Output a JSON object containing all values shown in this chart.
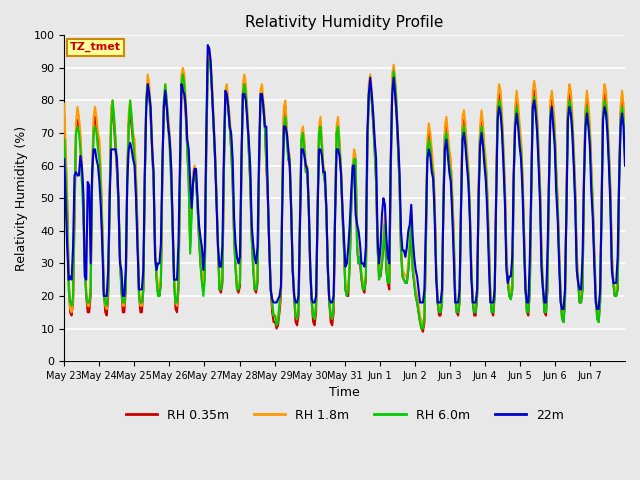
{
  "title": "Relativity Humidity Profile",
  "xlabel": "Time",
  "ylabel": "Relativity Humidity (%)",
  "ylim": [
    0,
    100
  ],
  "yticks": [
    0,
    10,
    20,
    30,
    40,
    50,
    60,
    70,
    80,
    90,
    100
  ],
  "bg_color": "#e8e8e8",
  "grid_color": "white",
  "annotation_text": "TZ_tmet",
  "annotation_bg": "#ffff99",
  "annotation_border": "#cc8800",
  "annotation_text_color": "#cc0000",
  "legend_labels": [
    "RH 0.35m",
    "RH 1.8m",
    "RH 6.0m",
    "22m"
  ],
  "line_colors": [
    "#cc0000",
    "#ff9900",
    "#00cc00",
    "#0000cc"
  ],
  "line_width": 1.5,
  "x_tick_labels": [
    "May 23",
    "May 24",
    "May 25",
    "May 26",
    "May 27",
    "May 28",
    "May 29",
    "May 30",
    "May 31",
    "Jun 1",
    "Jun 2",
    "Jun 3",
    "Jun 4",
    "Jun 5",
    "Jun 6",
    "Jun 7"
  ],
  "num_days": 16,
  "pts_per_day": 24,
  "rh035": [
    75,
    62,
    48,
    25,
    15,
    14,
    18,
    45,
    70,
    74,
    72,
    68,
    58,
    48,
    30,
    20,
    15,
    15,
    20,
    55,
    72,
    75,
    72,
    68,
    65,
    55,
    40,
    22,
    15,
    14,
    20,
    50,
    75,
    76,
    72,
    65,
    58,
    48,
    32,
    22,
    15,
    15,
    22,
    55,
    73,
    76,
    72,
    67,
    65,
    55,
    40,
    21,
    15,
    15,
    22,
    55,
    80,
    85,
    82,
    75,
    65,
    55,
    35,
    26,
    21,
    20,
    24,
    58,
    78,
    82,
    78,
    72,
    68,
    58,
    42,
    25,
    16,
    15,
    22,
    55,
    82,
    85,
    82,
    75,
    65,
    55,
    35,
    48,
    55,
    57,
    55,
    48,
    38,
    30,
    25,
    22,
    28,
    65,
    92,
    94,
    90,
    82,
    72,
    62,
    50,
    35,
    22,
    21,
    24,
    58,
    80,
    82,
    78,
    72,
    65,
    55,
    38,
    29,
    22,
    21,
    23,
    60,
    82,
    85,
    82,
    75,
    65,
    55,
    38,
    30,
    22,
    21,
    24,
    58,
    80,
    82,
    78,
    72,
    60,
    50,
    35,
    22,
    15,
    12,
    12,
    10,
    11,
    15,
    20,
    55,
    75,
    78,
    70,
    62,
    60,
    46,
    28,
    20,
    12,
    11,
    14,
    42,
    68,
    70,
    66,
    58,
    58,
    47,
    28,
    18,
    12,
    11,
    15,
    45,
    70,
    72,
    66,
    58,
    55,
    46,
    28,
    18,
    12,
    11,
    15,
    45,
    70,
    72,
    66,
    58,
    45,
    35,
    22,
    20,
    20,
    30,
    47,
    58,
    62,
    60,
    35,
    30,
    30,
    25,
    22,
    21,
    25,
    65,
    82,
    85,
    80,
    73,
    65,
    55,
    35,
    26,
    26,
    30,
    35,
    42,
    28,
    24,
    22,
    58,
    83,
    86,
    82,
    75,
    65,
    54,
    34,
    26,
    25,
    24,
    24,
    28,
    34,
    42,
    28,
    24,
    20,
    18,
    15,
    12,
    10,
    9,
    12,
    35,
    65,
    70,
    68,
    62,
    58,
    48,
    28,
    18,
    14,
    14,
    18,
    50,
    70,
    72,
    68,
    62,
    60,
    50,
    38,
    20,
    15,
    14,
    18,
    48,
    72,
    74,
    70,
    63,
    57,
    46,
    28,
    18,
    14,
    14,
    20,
    52,
    70,
    74,
    70,
    63,
    60,
    50,
    36,
    20,
    15,
    14,
    20,
    52,
    78,
    82,
    80,
    73,
    63,
    52,
    32,
    24,
    20,
    19,
    22,
    56,
    76,
    80,
    76,
    70,
    66,
    56,
    40,
    23,
    15,
    14,
    22,
    53,
    80,
    83,
    80,
    73,
    63,
    52,
    32,
    22,
    15,
    14,
    22,
    53,
    78,
    80,
    76,
    70,
    58,
    48,
    33,
    20,
    13,
    12,
    18,
    48,
    78,
    82,
    80,
    73,
    63,
    52,
    32,
    24,
    18,
    18,
    22,
    56,
    76,
    80,
    76,
    70,
    58,
    48,
    33,
    20,
    13,
    12,
    18,
    48,
    78,
    82,
    80,
    73,
    63,
    52,
    32,
    24,
    20,
    20,
    22,
    56,
    76,
    80,
    76,
    65
  ],
  "rh18": [
    79,
    65,
    50,
    27,
    16,
    15,
    19,
    48,
    73,
    78,
    75,
    70,
    60,
    50,
    32,
    22,
    17,
    17,
    22,
    58,
    75,
    78,
    75,
    70,
    68,
    58,
    42,
    24,
    17,
    16,
    22,
    52,
    78,
    80,
    75,
    68,
    60,
    50,
    34,
    24,
    17,
    17,
    24,
    58,
    76,
    80,
    75,
    70,
    68,
    58,
    42,
    23,
    17,
    17,
    24,
    58,
    81,
    88,
    85,
    78,
    68,
    58,
    37,
    28,
    23,
    22,
    26,
    60,
    80,
    85,
    80,
    75,
    70,
    60,
    44,
    27,
    18,
    17,
    24,
    58,
    88,
    90,
    88,
    80,
    68,
    58,
    37,
    50,
    58,
    60,
    58,
    50,
    40,
    32,
    27,
    24,
    30,
    68,
    93,
    96,
    92,
    85,
    75,
    65,
    52,
    37,
    24,
    23,
    26,
    60,
    83,
    85,
    80,
    75,
    68,
    58,
    40,
    31,
    24,
    23,
    25,
    62,
    85,
    88,
    85,
    78,
    68,
    58,
    40,
    32,
    24,
    23,
    26,
    60,
    83,
    85,
    80,
    75,
    63,
    52,
    37,
    24,
    17,
    14,
    14,
    12,
    13,
    17,
    22,
    58,
    78,
    80,
    72,
    65,
    63,
    48,
    30,
    22,
    14,
    13,
    16,
    45,
    70,
    72,
    68,
    60,
    60,
    50,
    30,
    20,
    14,
    13,
    17,
    48,
    72,
    75,
    68,
    60,
    58,
    48,
    30,
    20,
    14,
    13,
    17,
    48,
    72,
    75,
    68,
    60,
    48,
    38,
    24,
    22,
    22,
    32,
    50,
    60,
    65,
    63,
    38,
    32,
    32,
    27,
    24,
    23,
    27,
    68,
    85,
    88,
    83,
    76,
    68,
    58,
    37,
    28,
    28,
    32,
    38,
    45,
    30,
    26,
    24,
    62,
    88,
    91,
    87,
    80,
    68,
    56,
    36,
    28,
    27,
    26,
    26,
    30,
    37,
    45,
    30,
    26,
    22,
    20,
    17,
    14,
    12,
    11,
    14,
    38,
    68,
    73,
    70,
    65,
    60,
    50,
    30,
    20,
    16,
    16,
    20,
    52,
    72,
    75,
    70,
    65,
    62,
    52,
    40,
    22,
    17,
    16,
    20,
    50,
    75,
    77,
    73,
    66,
    60,
    48,
    30,
    20,
    16,
    16,
    22,
    54,
    72,
    77,
    73,
    66,
    62,
    52,
    38,
    22,
    17,
    16,
    22,
    54,
    80,
    85,
    83,
    76,
    66,
    54,
    34,
    26,
    22,
    21,
    24,
    58,
    78,
    83,
    79,
    73,
    68,
    58,
    42,
    25,
    17,
    16,
    24,
    55,
    83,
    86,
    83,
    76,
    66,
    54,
    34,
    24,
    17,
    16,
    24,
    55,
    80,
    83,
    79,
    73,
    60,
    50,
    35,
    22,
    15,
    14,
    20,
    50,
    80,
    85,
    83,
    76,
    66,
    54,
    34,
    26,
    20,
    20,
    24,
    58,
    78,
    83,
    79,
    73,
    60,
    50,
    35,
    22,
    15,
    14,
    20,
    50,
    80,
    85,
    83,
    76,
    66,
    54,
    34,
    26,
    22,
    22,
    24,
    58,
    78,
    83,
    79,
    68
  ],
  "rh60": [
    68,
    58,
    45,
    22,
    18,
    17,
    20,
    50,
    70,
    72,
    70,
    65,
    55,
    45,
    28,
    20,
    18,
    18,
    22,
    55,
    70,
    72,
    70,
    65,
    62,
    52,
    38,
    20,
    18,
    17,
    22,
    50,
    72,
    80,
    75,
    68,
    60,
    50,
    32,
    22,
    18,
    18,
    22,
    55,
    72,
    80,
    75,
    68,
    62,
    52,
    38,
    20,
    18,
    18,
    22,
    55,
    80,
    85,
    82,
    75,
    65,
    55,
    33,
    25,
    20,
    20,
    24,
    58,
    80,
    85,
    80,
    72,
    65,
    55,
    40,
    24,
    18,
    18,
    24,
    55,
    85,
    88,
    85,
    78,
    65,
    55,
    33,
    45,
    55,
    58,
    56,
    48,
    38,
    30,
    24,
    20,
    25,
    65,
    90,
    92,
    90,
    82,
    72,
    62,
    50,
    35,
    22,
    22,
    25,
    58,
    80,
    82,
    78,
    72,
    65,
    55,
    38,
    28,
    22,
    22,
    24,
    58,
    82,
    85,
    82,
    75,
    65,
    55,
    38,
    28,
    22,
    22,
    25,
    58,
    80,
    82,
    78,
    72,
    62,
    52,
    35,
    22,
    18,
    14,
    14,
    11,
    12,
    18,
    22,
    55,
    72,
    75,
    68,
    62,
    62,
    47,
    28,
    20,
    14,
    13,
    16,
    45,
    68,
    70,
    65,
    58,
    58,
    47,
    28,
    18,
    14,
    13,
    18,
    47,
    70,
    72,
    65,
    58,
    55,
    47,
    28,
    18,
    14,
    13,
    18,
    47,
    70,
    72,
    65,
    58,
    46,
    35,
    22,
    20,
    22,
    30,
    48,
    58,
    62,
    62,
    35,
    30,
    32,
    26,
    22,
    22,
    26,
    65,
    82,
    85,
    80,
    74,
    65,
    55,
    35,
    25,
    27,
    30,
    36,
    42,
    28,
    24,
    24,
    60,
    83,
    89,
    85,
    78,
    65,
    55,
    34,
    26,
    25,
    24,
    24,
    28,
    35,
    42,
    28,
    24,
    20,
    18,
    15,
    12,
    10,
    10,
    14,
    37,
    65,
    68,
    66,
    60,
    57,
    46,
    28,
    18,
    15,
    15,
    18,
    50,
    68,
    70,
    66,
    60,
    58,
    48,
    36,
    20,
    15,
    15,
    18,
    47,
    70,
    72,
    68,
    62,
    57,
    46,
    28,
    18,
    15,
    15,
    20,
    50,
    68,
    72,
    68,
    62,
    58,
    48,
    34,
    20,
    15,
    15,
    20,
    50,
    76,
    80,
    78,
    72,
    62,
    50,
    30,
    24,
    20,
    19,
    22,
    55,
    74,
    78,
    74,
    68,
    64,
    54,
    38,
    22,
    15,
    15,
    22,
    52,
    78,
    81,
    78,
    72,
    62,
    50,
    30,
    22,
    15,
    15,
    22,
    52,
    76,
    78,
    74,
    68,
    57,
    46,
    32,
    20,
    13,
    12,
    18,
    47,
    76,
    80,
    78,
    72,
    62,
    50,
    30,
    24,
    18,
    18,
    22,
    55,
    74,
    78,
    74,
    68,
    57,
    46,
    32,
    20,
    13,
    12,
    18,
    47,
    76,
    80,
    78,
    72,
    62,
    50,
    30,
    24,
    20,
    20,
    22,
    55,
    74,
    78,
    74,
    62
  ],
  "rh22m": [
    62,
    48,
    35,
    25,
    26,
    25,
    35,
    57,
    58,
    57,
    57,
    63,
    60,
    52,
    26,
    25,
    55,
    54,
    30,
    58,
    65,
    65,
    62,
    60,
    55,
    47,
    35,
    20,
    20,
    20,
    28,
    50,
    65,
    65,
    65,
    65,
    62,
    50,
    30,
    28,
    20,
    20,
    28,
    55,
    65,
    67,
    65,
    62,
    60,
    50,
    35,
    22,
    22,
    22,
    28,
    58,
    78,
    85,
    82,
    78,
    65,
    58,
    32,
    28,
    30,
    30,
    36,
    60,
    78,
    83,
    78,
    72,
    68,
    60,
    42,
    25,
    25,
    25,
    36,
    60,
    85,
    83,
    82,
    78,
    68,
    65,
    55,
    47,
    55,
    59,
    59,
    50,
    42,
    38,
    35,
    28,
    35,
    70,
    97,
    96,
    92,
    82,
    73,
    63,
    48,
    35,
    29,
    29,
    35,
    63,
    83,
    82,
    78,
    72,
    70,
    62,
    44,
    36,
    32,
    30,
    32,
    62,
    82,
    82,
    80,
    74,
    68,
    60,
    42,
    36,
    32,
    30,
    35,
    62,
    82,
    82,
    78,
    72,
    72,
    52,
    35,
    22,
    19,
    18,
    18,
    18,
    19,
    20,
    23,
    50,
    72,
    72,
    70,
    65,
    60,
    46,
    28,
    20,
    18,
    18,
    20,
    42,
    65,
    65,
    63,
    60,
    59,
    47,
    29,
    19,
    18,
    18,
    20,
    45,
    65,
    65,
    63,
    58,
    58,
    47,
    29,
    19,
    18,
    18,
    20,
    45,
    65,
    65,
    63,
    58,
    47,
    38,
    29,
    30,
    35,
    42,
    52,
    60,
    60,
    45,
    42,
    40,
    36,
    30,
    30,
    29,
    35,
    70,
    82,
    87,
    82,
    76,
    68,
    62,
    38,
    30,
    35,
    45,
    50,
    48,
    38,
    32,
    30,
    62,
    82,
    87,
    82,
    76,
    68,
    58,
    40,
    34,
    34,
    32,
    35,
    40,
    42,
    48,
    38,
    32,
    28,
    26,
    22,
    18,
    18,
    18,
    22,
    42,
    62,
    65,
    63,
    58,
    56,
    44,
    26,
    18,
    18,
    18,
    22,
    48,
    65,
    68,
    63,
    58,
    55,
    45,
    32,
    18,
    18,
    18,
    22,
    47,
    68,
    70,
    66,
    60,
    55,
    44,
    26,
    18,
    18,
    18,
    22,
    50,
    66,
    70,
    66,
    60,
    55,
    45,
    30,
    18,
    18,
    18,
    22,
    50,
    74,
    78,
    76,
    70,
    60,
    48,
    28,
    24,
    26,
    26,
    32,
    58,
    72,
    76,
    72,
    66,
    62,
    52,
    36,
    22,
    18,
    18,
    32,
    54,
    78,
    80,
    76,
    70,
    60,
    48,
    28,
    22,
    18,
    18,
    32,
    54,
    74,
    78,
    72,
    66,
    52,
    44,
    30,
    18,
    16,
    16,
    22,
    46,
    74,
    78,
    76,
    70,
    60,
    48,
    28,
    24,
    22,
    22,
    32,
    56,
    72,
    76,
    72,
    66,
    52,
    44,
    30,
    18,
    16,
    16,
    22,
    46,
    74,
    78,
    76,
    70,
    60,
    48,
    28,
    24,
    24,
    24,
    32,
    56,
    72,
    76,
    72,
    60
  ]
}
